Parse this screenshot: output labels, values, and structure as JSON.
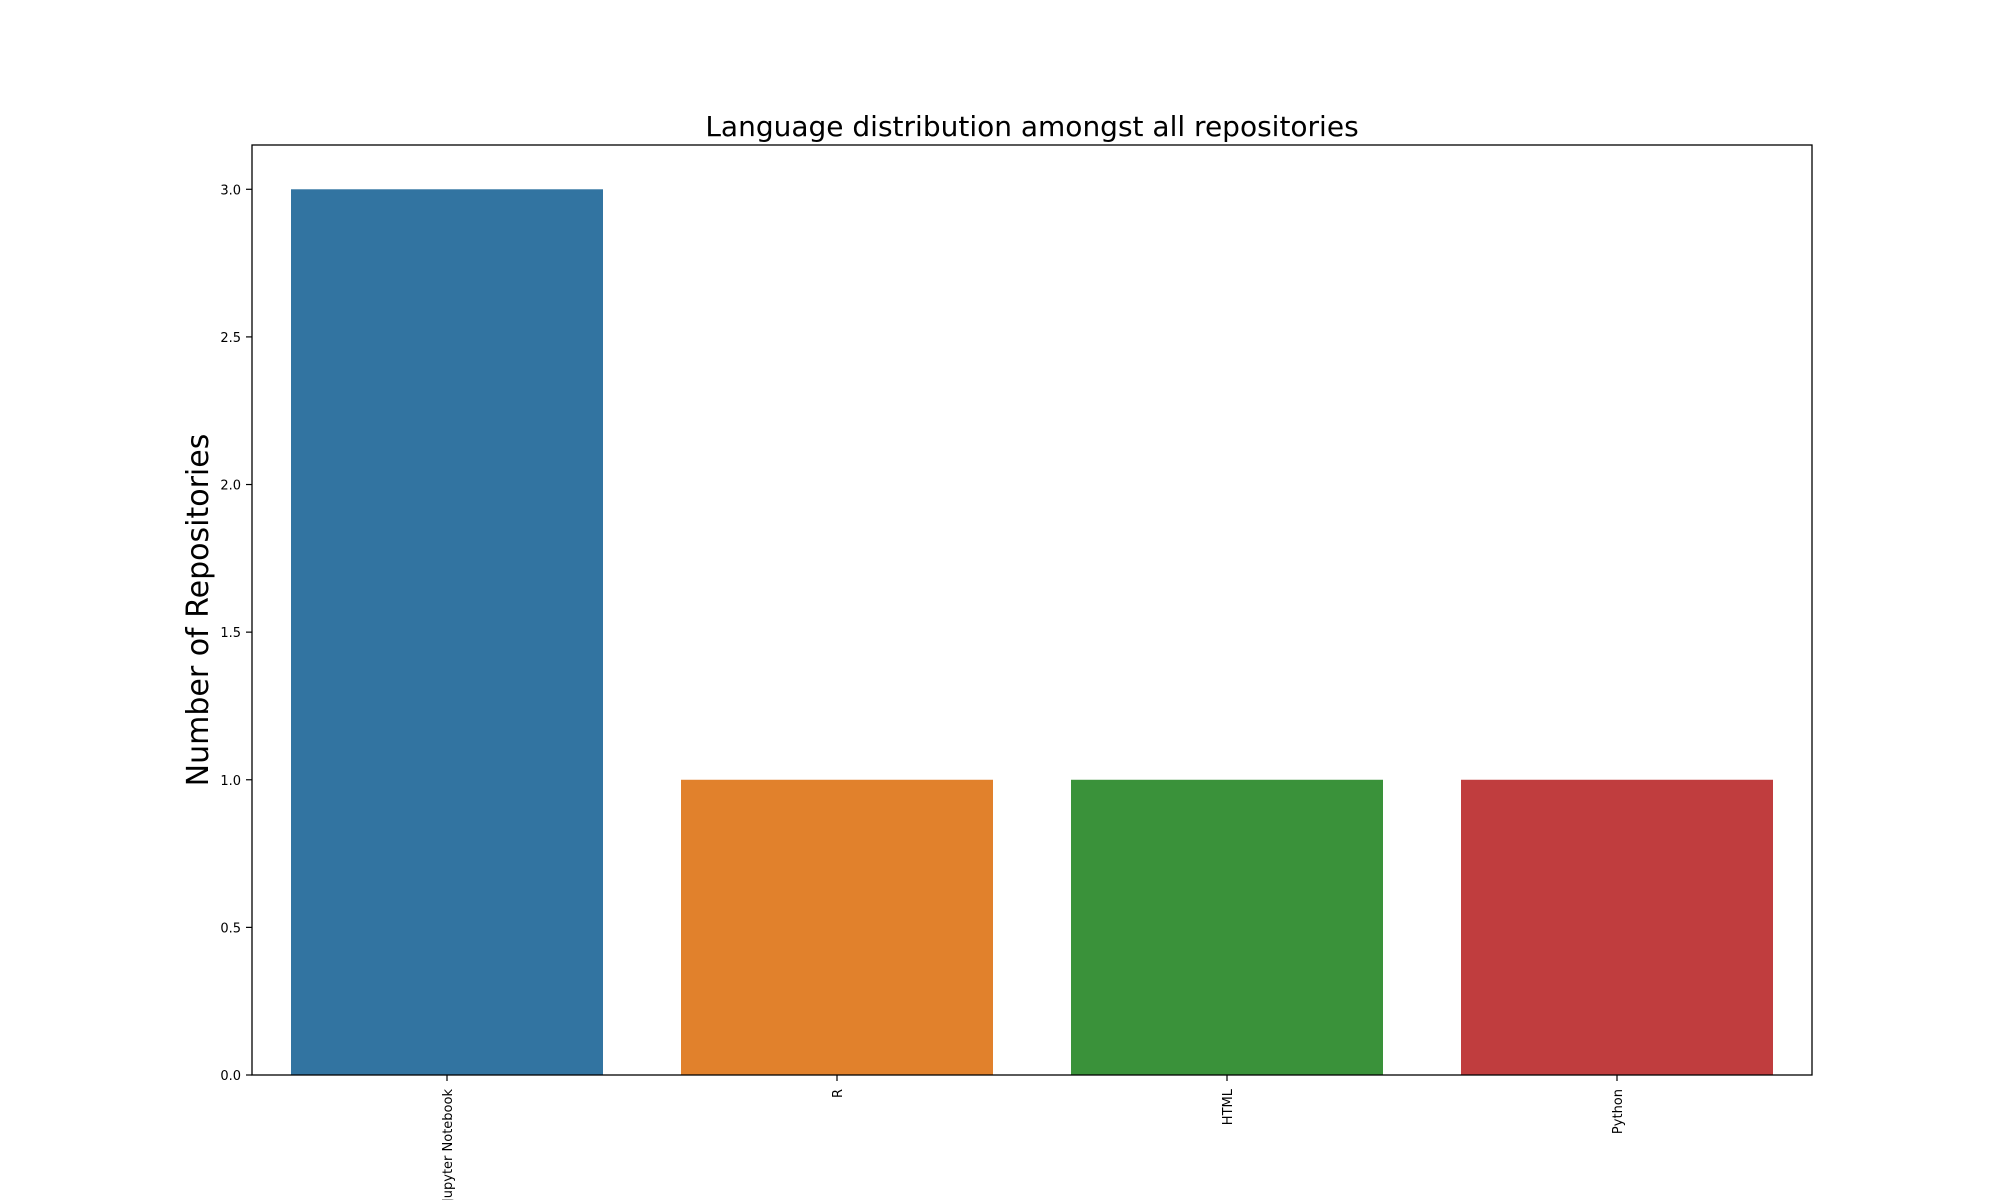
{
  "chart_data": {
    "type": "bar",
    "title": "Language distribution amongst all repositories",
    "xlabel": "",
    "ylabel": "Number of Repositories",
    "categories": [
      "Jupyter Notebook",
      "R",
      "HTML",
      "Python"
    ],
    "values": [
      3,
      1,
      1,
      1
    ],
    "colors": [
      "#3274a1",
      "#e1812c",
      "#3a923a",
      "#c03d3e"
    ],
    "ylim": [
      0,
      3.15
    ],
    "yticks": [
      0.0,
      0.5,
      1.0,
      1.5,
      2.0,
      2.5,
      3.0
    ],
    "ytick_labels": [
      "0.0",
      "0.5",
      "1.0",
      "1.5",
      "2.0",
      "2.5",
      "3.0"
    ],
    "xtick_rotation": "vertical",
    "grid": false,
    "legend": "none"
  }
}
